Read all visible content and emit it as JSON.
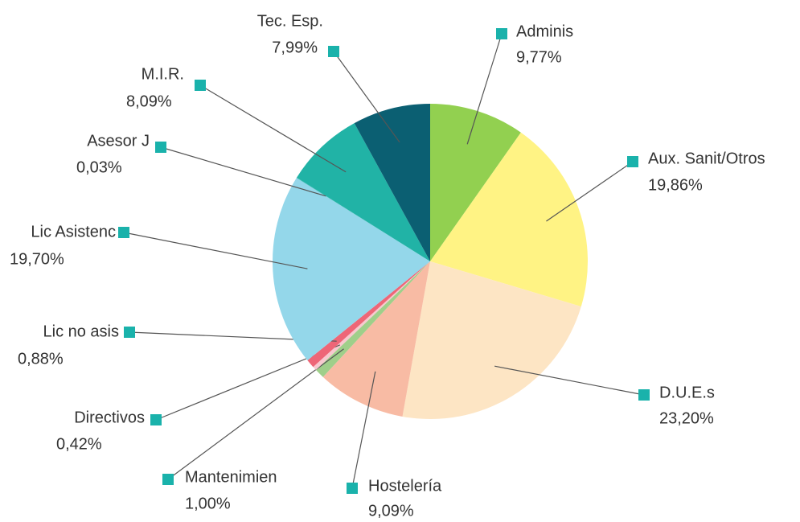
{
  "chart_data": {
    "type": "pie",
    "categories": [
      "Adminis",
      "Aux. Sanit/Otros",
      "D.U.E.s",
      "Hostelería",
      "Mantenimien",
      "Directivos",
      "Lic no asis",
      "Lic Asistenc",
      "Asesor J",
      "M.I.R.",
      "Tec. Esp."
    ],
    "values": [
      9.77,
      19.86,
      23.2,
      9.09,
      1.0,
      0.42,
      0.88,
      19.7,
      0.03,
      8.09,
      7.99
    ],
    "value_labels": [
      "9,77%",
      "19,86%",
      "23,20%",
      "9,09%",
      "1,00%",
      "0,42%",
      "0,88%",
      "19,70%",
      "0,03%",
      "8,09%",
      "7,99%"
    ],
    "colors": [
      "#92d050",
      "#fff384",
      "#fde5c4",
      "#f8bba4",
      "#9fcf8a",
      "#f7c9cf",
      "#ee6677",
      "#94d7ea",
      "#1fb1a6",
      "#21b3a6",
      "#0b5f72"
    ],
    "marker_color": "#1ab2ab"
  }
}
